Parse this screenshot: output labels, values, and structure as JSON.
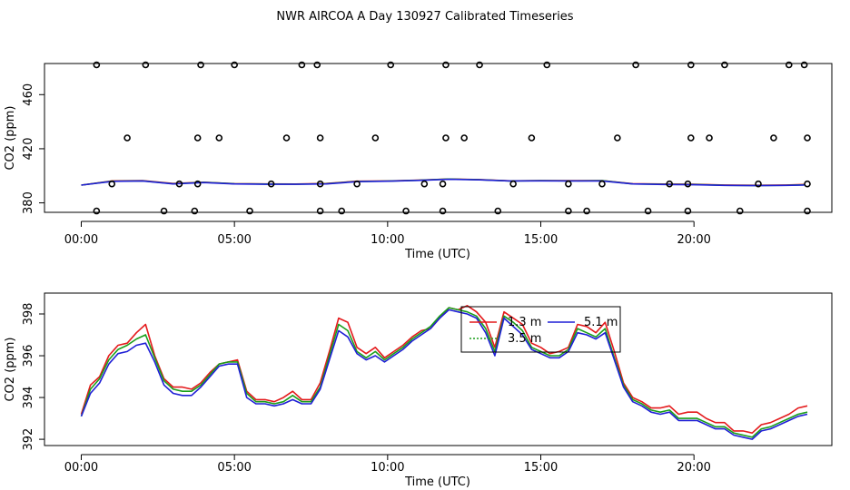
{
  "page_title": "NWR AIRCOA A  Day 130927  Calibrated Timeseries",
  "colors": {
    "red": "#e41a1c",
    "green": "#1a9e1a",
    "blue": "#1f1fd6",
    "axis": "#000000"
  },
  "chart_data": [
    {
      "type": "scatter",
      "title": "",
      "xlabel": "Time (UTC)",
      "ylabel": "CO2 (ppm)",
      "xlim": [
        -1.2,
        24.5
      ],
      "ylim": [
        373,
        483
      ],
      "xticks": [
        0,
        5,
        10,
        15,
        20
      ],
      "xtick_labels": [
        "00:00",
        "05:00",
        "10:00",
        "15:00",
        "20:00"
      ],
      "yticks": [
        380,
        420,
        460
      ],
      "ytick_labels": [
        "380",
        "420",
        "460"
      ],
      "points_x": [
        0.5,
        2.1,
        3.9,
        5.0,
        7.2,
        7.7,
        10.1,
        11.9,
        13.0,
        15.2,
        18.1,
        19.9,
        21.0,
        23.1,
        23.6,
        1.5,
        3.8,
        4.5,
        6.7,
        7.8,
        9.6,
        11.9,
        12.5,
        14.7,
        17.5,
        19.9,
        20.5,
        22.6,
        23.7,
        1.0,
        3.2,
        3.8,
        6.2,
        7.8,
        9.0,
        11.2,
        11.8,
        14.1,
        15.9,
        17.0,
        19.2,
        19.8,
        22.1,
        23.7,
        0.5,
        2.7,
        3.7,
        5.5,
        7.8,
        8.5,
        10.6,
        11.8,
        13.6,
        15.9,
        16.5,
        18.5,
        19.8,
        21.5,
        23.7
      ],
      "points_y": [
        482,
        482,
        482,
        482,
        482,
        482,
        482,
        482,
        482,
        482,
        482,
        482,
        482,
        482,
        482,
        428,
        428,
        428,
        428,
        428,
        428,
        428,
        428,
        428,
        428,
        428,
        428,
        428,
        428,
        394,
        394,
        394,
        394,
        394,
        394,
        394,
        394,
        394,
        394,
        394,
        394,
        394,
        394,
        394,
        374,
        374,
        374,
        374,
        374,
        374,
        374,
        374,
        374,
        374,
        374,
        374,
        374,
        374,
        374
      ],
      "line_x": [
        0,
        1,
        2,
        3,
        4,
        5,
        6,
        7,
        8,
        9,
        10,
        11,
        12,
        13,
        14,
        15,
        16,
        17,
        18,
        19,
        20,
        21,
        22,
        23,
        23.6
      ],
      "series": [
        {
          "color": "red",
          "values": [
            393.1,
            396.2,
            396.5,
            394.3,
            395.3,
            394.2,
            394.0,
            393.9,
            394.3,
            396.0,
            396.2,
            396.8,
            397.6,
            397.2,
            396.3,
            396.5,
            396.4,
            396.5,
            394.2,
            393.9,
            393.8,
            393.2,
            393.0,
            393.2,
            393.6
          ]
        },
        {
          "color": "green",
          "values": [
            393.1,
            396.0,
            396.3,
            394.1,
            395.2,
            394.1,
            393.9,
            393.8,
            394.2,
            395.8,
            396.1,
            396.7,
            397.6,
            397.1,
            396.2,
            396.4,
            396.3,
            396.4,
            394.0,
            393.8,
            393.6,
            393.0,
            392.8,
            393.0,
            393.3
          ]
        },
        {
          "color": "blue",
          "values": [
            393.1,
            395.9,
            396.2,
            394.0,
            395.0,
            394.0,
            393.7,
            393.7,
            394.0,
            395.7,
            396.0,
            396.6,
            397.4,
            397.0,
            396.2,
            396.3,
            396.2,
            396.2,
            394.0,
            393.6,
            393.4,
            392.9,
            392.7,
            392.9,
            393.2
          ]
        }
      ]
    },
    {
      "type": "line",
      "title": "",
      "xlabel": "Time (UTC)",
      "ylabel": "CO2 (ppm)",
      "xlim": [
        -1.2,
        24.5
      ],
      "ylim": [
        391.7,
        399.0
      ],
      "xticks": [
        0,
        5,
        10,
        15,
        20
      ],
      "xtick_labels": [
        "00:00",
        "05:00",
        "10:00",
        "15:00",
        "20:00"
      ],
      "yticks": [
        392,
        394,
        396,
        398
      ],
      "ytick_labels": [
        "392",
        "394",
        "396",
        "398"
      ],
      "legend": {
        "position": "top-center",
        "entries": [
          {
            "label": "1.3 m",
            "color": "red"
          },
          {
            "label": "5.1 m",
            "color": "blue"
          },
          {
            "label": "3.5 m",
            "color": "green"
          }
        ]
      },
      "x": [
        0,
        0.3,
        0.6,
        0.9,
        1.2,
        1.5,
        1.8,
        2.1,
        2.4,
        2.7,
        3.0,
        3.3,
        3.6,
        3.9,
        4.2,
        4.5,
        4.8,
        5.1,
        5.4,
        5.7,
        6.0,
        6.3,
        6.6,
        6.9,
        7.2,
        7.5,
        7.8,
        8.1,
        8.4,
        8.7,
        9.0,
        9.3,
        9.6,
        9.9,
        10.2,
        10.5,
        10.8,
        11.1,
        11.4,
        11.7,
        12.0,
        12.3,
        12.6,
        12.9,
        13.2,
        13.5,
        13.8,
        14.1,
        14.4,
        14.7,
        15.0,
        15.3,
        15.6,
        15.9,
        16.2,
        16.5,
        16.8,
        17.1,
        17.4,
        17.7,
        18.0,
        18.3,
        18.6,
        18.9,
        19.2,
        19.5,
        19.8,
        20.1,
        20.4,
        20.7,
        21.0,
        21.3,
        21.6,
        21.9,
        22.2,
        22.5,
        22.8,
        23.1,
        23.4,
        23.7
      ],
      "series": [
        {
          "name": "1.3 m",
          "color": "red",
          "values": [
            393.2,
            394.6,
            395.0,
            396.0,
            396.5,
            396.6,
            397.1,
            397.5,
            396.0,
            394.9,
            394.5,
            394.5,
            394.4,
            394.7,
            395.2,
            395.6,
            395.7,
            395.8,
            394.3,
            393.9,
            393.9,
            393.8,
            394.0,
            394.3,
            393.9,
            393.9,
            394.7,
            396.2,
            397.8,
            397.6,
            396.4,
            396.1,
            396.4,
            395.9,
            396.2,
            396.5,
            396.9,
            397.2,
            397.3,
            397.8,
            398.3,
            398.2,
            398.4,
            398.1,
            397.6,
            396.4,
            398.1,
            397.8,
            397.5,
            396.6,
            396.4,
            396.1,
            396.2,
            396.4,
            397.5,
            397.4,
            397.1,
            397.6,
            396.2,
            394.7,
            394.0,
            393.8,
            393.5,
            393.5,
            393.6,
            393.2,
            393.3,
            393.3,
            393.0,
            392.8,
            392.8,
            392.4,
            392.4,
            392.3,
            392.7,
            392.8,
            393.0,
            393.2,
            393.5,
            393.6
          ]
        },
        {
          "name": "3.5 m",
          "color": "green",
          "values": [
            393.1,
            394.4,
            394.9,
            395.8,
            396.3,
            396.5,
            396.8,
            397.0,
            395.9,
            394.8,
            394.4,
            394.3,
            394.3,
            394.6,
            395.1,
            395.6,
            395.7,
            395.7,
            394.2,
            393.8,
            393.8,
            393.7,
            393.8,
            394.1,
            393.8,
            393.8,
            394.5,
            396.0,
            397.5,
            397.2,
            396.2,
            395.9,
            396.2,
            395.8,
            396.1,
            396.4,
            396.8,
            397.1,
            397.4,
            397.9,
            398.3,
            398.2,
            398.1,
            397.9,
            397.3,
            396.2,
            397.9,
            397.6,
            397.2,
            396.4,
            396.2,
            396.0,
            396.0,
            396.3,
            397.3,
            397.1,
            396.9,
            397.3,
            395.9,
            394.6,
            393.9,
            393.7,
            393.4,
            393.3,
            393.4,
            393.0,
            393.0,
            393.0,
            392.8,
            392.6,
            392.6,
            392.3,
            392.2,
            392.1,
            392.5,
            392.6,
            392.8,
            393.0,
            393.2,
            393.3
          ]
        },
        {
          "name": "5.1 m",
          "color": "blue",
          "values": [
            393.1,
            394.2,
            394.7,
            395.6,
            396.1,
            396.2,
            396.5,
            396.6,
            395.7,
            394.6,
            394.2,
            394.1,
            394.1,
            394.5,
            395.0,
            395.5,
            395.6,
            395.6,
            394.0,
            393.7,
            393.7,
            393.6,
            393.7,
            393.9,
            393.7,
            393.7,
            394.4,
            395.8,
            397.2,
            396.9,
            396.1,
            395.8,
            396.0,
            395.7,
            396.0,
            396.3,
            396.7,
            397.0,
            397.3,
            397.8,
            398.2,
            398.1,
            398.0,
            397.8,
            397.1,
            396.0,
            397.8,
            397.4,
            397.0,
            396.3,
            396.1,
            395.9,
            395.9,
            396.2,
            397.1,
            397.0,
            396.8,
            397.1,
            395.8,
            394.5,
            393.8,
            393.6,
            393.3,
            393.2,
            393.3,
            392.9,
            392.9,
            392.9,
            392.7,
            392.5,
            392.5,
            392.2,
            392.1,
            392.0,
            392.4,
            392.5,
            392.7,
            392.9,
            393.1,
            393.2
          ]
        }
      ]
    }
  ]
}
